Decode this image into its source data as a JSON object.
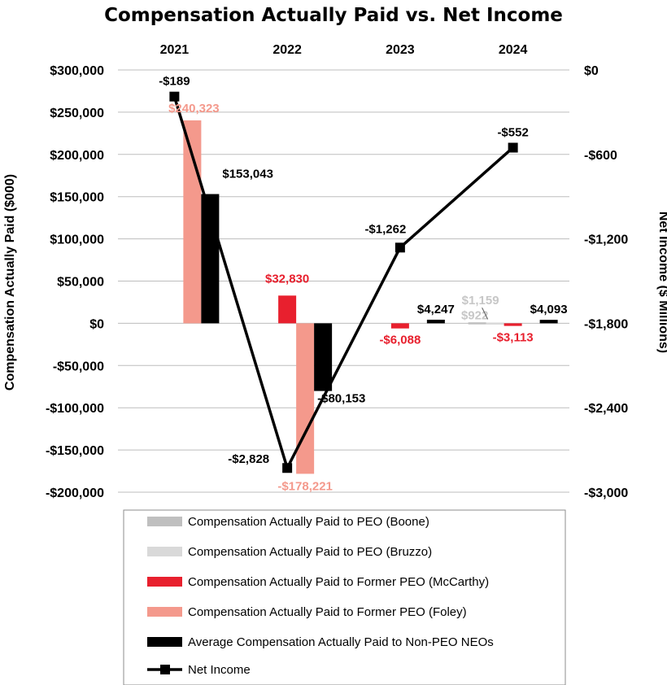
{
  "chart_data": {
    "type": "bar",
    "title": "Compensation Actually Paid vs. Net Income",
    "categories": [
      "2021",
      "2022",
      "2023",
      "2024"
    ],
    "ylabel": "Compensation Actually Paid ($000)",
    "y2label": "Net Income ($ Millions)",
    "ylim": [
      -200000,
      300000
    ],
    "y2lim": [
      -3000,
      0
    ],
    "yticks": [
      300000,
      250000,
      200000,
      150000,
      100000,
      50000,
      0,
      -50000,
      -100000,
      -150000,
      -200000
    ],
    "ytick_labels": [
      "$300,000",
      "$250,000",
      "$200,000",
      "$150,000",
      "$100,000",
      "$50,000",
      "$0",
      "-$50,000",
      "-$100,000",
      "-$150,000",
      "-$200,000"
    ],
    "y2ticks": [
      0,
      -600,
      -1200,
      -1800,
      -2400,
      -3000
    ],
    "y2tick_labels": [
      "$0",
      "-$600",
      "-$1,200",
      "-$1,800",
      "-$2,400",
      "-$3,000"
    ],
    "grid": true,
    "series": [
      {
        "name": "Compensation Actually Paid to PEO (Boone)",
        "color": "#bfbfbf",
        "values": [
          null,
          null,
          null,
          1159
        ],
        "labels": [
          null,
          null,
          null,
          "$1,159"
        ],
        "label_color": "#c7c7c7"
      },
      {
        "name": "Compensation Actually Paid to PEO (Bruzzo)",
        "color": "#d9d9d9",
        "values": [
          null,
          null,
          null,
          922
        ],
        "labels": [
          null,
          null,
          null,
          "$922"
        ],
        "label_color": "#c7c7c7"
      },
      {
        "name": "Compensation Actually Paid to Former PEO (McCarthy)",
        "color": "#e8202e",
        "values": [
          null,
          32830,
          -6088,
          -3113
        ],
        "labels": [
          null,
          "$32,830",
          "-$6,088",
          "-$3,113"
        ],
        "label_color": "#e8202e"
      },
      {
        "name": "Compensation Actually Paid to Former PEO (Foley)",
        "color": "#f4998c",
        "values": [
          240323,
          -178221,
          null,
          null
        ],
        "labels": [
          "$240,323",
          "-$178,221",
          null,
          null
        ],
        "label_color": "#f4998c"
      },
      {
        "name": "Average Compensation Actually Paid to Non-PEO NEOs",
        "color": "#000000",
        "values": [
          153043,
          -80153,
          4247,
          4093
        ],
        "labels": [
          "$153,043",
          "-$80,153",
          "$4,247",
          "$4,093"
        ],
        "label_color": "#000000"
      }
    ],
    "line": {
      "name": "Net Income",
      "axis": "right",
      "color": "#000000",
      "values": [
        -189,
        -2828,
        -1262,
        -552
      ],
      "labels": [
        "-$189",
        "-$2,828",
        "-$1,262",
        "-$552"
      ]
    },
    "legend_position": "bottom"
  }
}
